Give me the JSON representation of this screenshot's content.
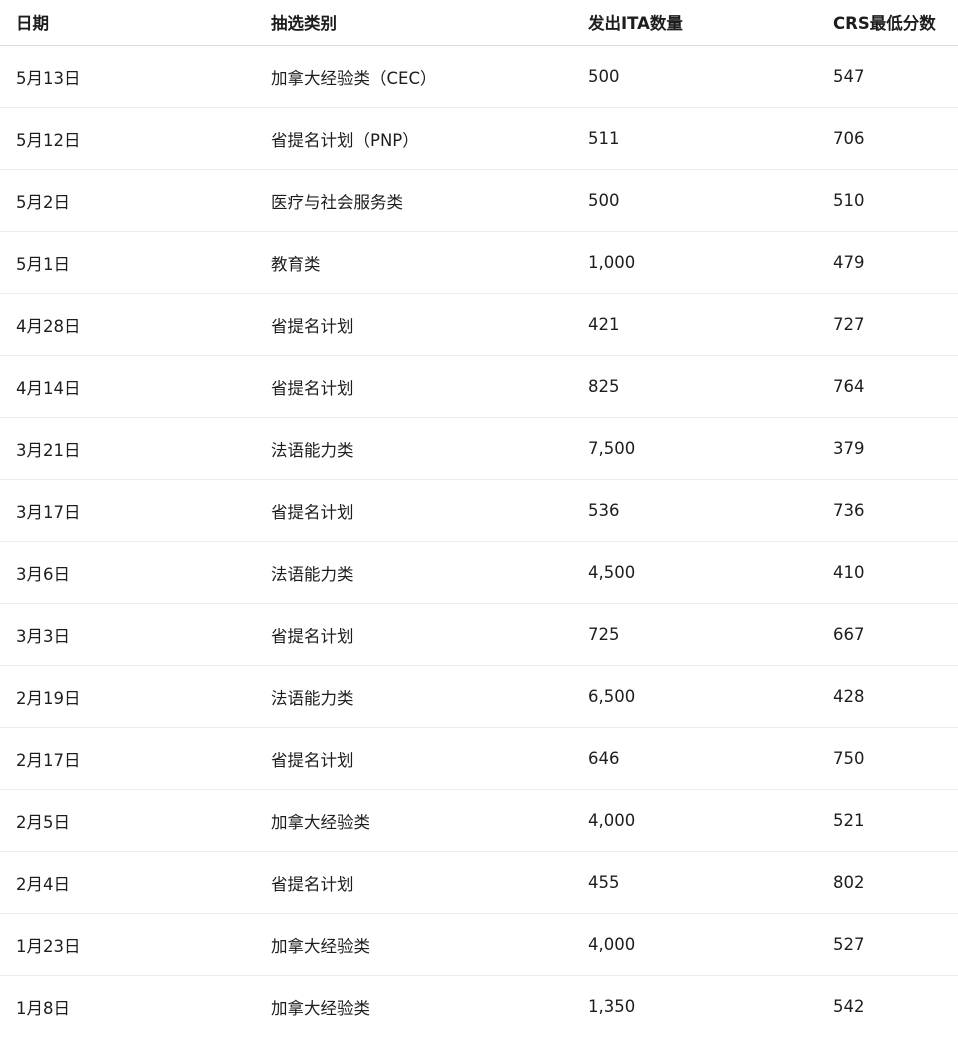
{
  "headers": [
    "日期",
    "抽选类别",
    "发出ITA数量",
    "CRS最低分数"
  ],
  "rows": [
    [
      "5月13日",
      "加拿大经验类（CEC）",
      "500",
      "547"
    ],
    [
      "5月12日",
      "省提名计划（PNP）",
      "511",
      "706"
    ],
    [
      "5月2日",
      "医疗与社会服务类",
      "500",
      "510"
    ],
    [
      "5月1日",
      "教育类",
      "1,000",
      "479"
    ],
    [
      "4月28日",
      "省提名计划",
      "421",
      "727"
    ],
    [
      "4月14日",
      "省提名计划",
      "825",
      "764"
    ],
    [
      "3月21日",
      "法语能力类",
      "7,500",
      "379"
    ],
    [
      "3月17日",
      "省提名计划",
      "536",
      "736"
    ],
    [
      "3月6日",
      "法语能力类",
      "4,500",
      "410"
    ],
    [
      "3月3日",
      "省提名计划",
      "725",
      "667"
    ],
    [
      "2月19日",
      "法语能力类",
      "6,500",
      "428"
    ],
    [
      "2月17日",
      "省提名计划",
      "646",
      "750"
    ],
    [
      "2月5日",
      "加拿大经验类",
      "4,000",
      "521"
    ],
    [
      "2月4日",
      "省提名计划",
      "455",
      "802"
    ],
    [
      "1月23日",
      "加拿大经验类",
      "4,000",
      "527"
    ],
    [
      "1月8日",
      "加拿大经验类",
      "1,350",
      "542"
    ]
  ]
}
